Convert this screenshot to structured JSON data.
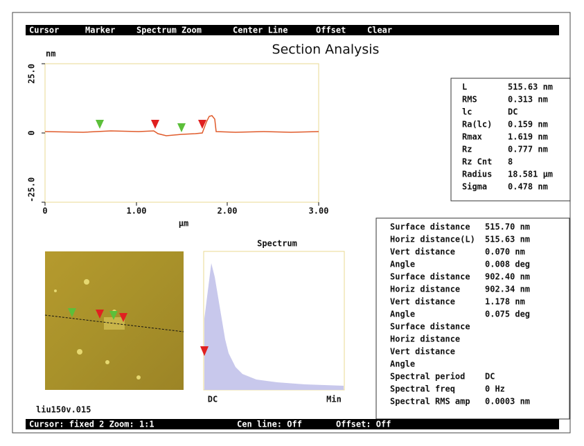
{
  "menu": [
    "Cursor",
    "Marker",
    "Spectrum Zoom",
    "Center Line",
    "Offset",
    "Clear"
  ],
  "title": "Section Analysis",
  "profile": {
    "y_unit": "nm",
    "yticks": [
      "25.0",
      "0",
      "-25.0"
    ],
    "xticks": [
      "0",
      "1.00",
      "2.00",
      "3.00"
    ],
    "x_unit": "µm"
  },
  "stats": [
    [
      "L",
      "515.63 nm"
    ],
    [
      "RMS",
      "0.313 nm"
    ],
    [
      "lc",
      "DC"
    ],
    [
      "Ra(lc)",
      "0.159 nm"
    ],
    [
      "Rmax",
      "1.619 nm"
    ],
    [
      "Rz",
      "0.777 nm"
    ],
    [
      "Rz Cnt",
      "8"
    ],
    [
      "Radius",
      "18.581 µm"
    ],
    [
      "Sigma",
      "0.478 nm"
    ]
  ],
  "stats_color": "#e03a22",
  "spectrum": {
    "title": "Spectrum",
    "x_labels": [
      "DC",
      "Min"
    ]
  },
  "measurements": [
    {
      "label": "Surface distance",
      "value": "515.70 nm",
      "color": "#e03a22"
    },
    {
      "label": "Horiz distance(L)",
      "value": "515.63 nm",
      "color": "#e03a22"
    },
    {
      "label": "Vert distance",
      "value": "0.070 nm",
      "color": "#e03a22"
    },
    {
      "label": "Angle",
      "value": "0.008 deg",
      "color": "#e03a22"
    },
    {
      "label": "Surface distance",
      "value": "902.40 nm",
      "color": "#6cb84a"
    },
    {
      "label": "Horiz distance",
      "value": "902.34 nm",
      "color": "#6cb84a"
    },
    {
      "label": "Vert distance",
      "value": "1.178 nm",
      "color": "#6cb84a"
    },
    {
      "label": "Angle",
      "value": "0.075 deg",
      "color": "#6cb84a"
    },
    {
      "label": "Surface distance",
      "color": "#111111"
    },
    {
      "label": "Horiz distance",
      "color": "#111111"
    },
    {
      "label": "Vert distance",
      "color": "#111111"
    },
    {
      "label": "Angle",
      "color": "#111111"
    },
    {
      "label": "Spectral period",
      "value": "DC",
      "color": "#e03a22"
    },
    {
      "label": "Spectral freq",
      "value": "0 Hz",
      "color": "#e03a22"
    },
    {
      "label": "Spectral RMS amp",
      "value": "0.0003 nm",
      "color": "#e03a22"
    }
  ],
  "filename": "liu150v.015",
  "status": [
    "Cursor: fixed 2 Zoom: 1:1",
    "Cen line: Off",
    "Offset: Off"
  ]
}
